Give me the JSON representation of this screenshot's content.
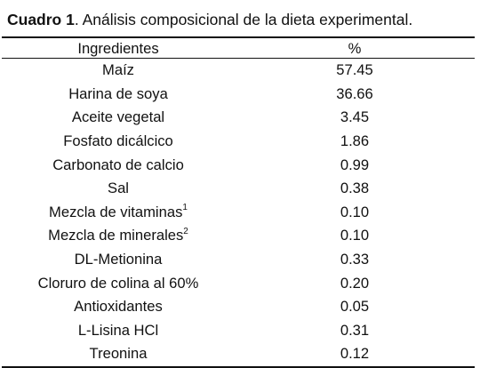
{
  "caption": {
    "lead": "Cuadro 1",
    "text": ". Análisis composicional de la dieta experimental."
  },
  "table": {
    "headers": {
      "ingredient": "Ingredientes",
      "percent": "%"
    },
    "rows": [
      {
        "name": "Maíz",
        "sup": "",
        "value": "57.45"
      },
      {
        "name": "Harina de soya",
        "sup": "",
        "value": "36.66"
      },
      {
        "name": "Aceite vegetal",
        "sup": "",
        "value": "3.45"
      },
      {
        "name": "Fosfato dicálcico",
        "sup": "",
        "value": "1.86"
      },
      {
        "name": "Carbonato de calcio",
        "sup": "",
        "value": "0.99"
      },
      {
        "name": "Sal",
        "sup": "",
        "value": "0.38"
      },
      {
        "name": "Mezcla de vitaminas",
        "sup": "1",
        "value": "0.10"
      },
      {
        "name": "Mezcla de minerales",
        "sup": "2",
        "value": "0.10"
      },
      {
        "name": "DL-Metionina",
        "sup": "",
        "value": "0.33"
      },
      {
        "name": "Cloruro de colina al 60%",
        "sup": "",
        "value": "0.20"
      },
      {
        "name": "Antioxidantes",
        "sup": "",
        "value": "0.05"
      },
      {
        "name": "L-Lisina HCl",
        "sup": "",
        "value": "0.31"
      },
      {
        "name": "Treonina",
        "sup": "",
        "value": "0.12"
      }
    ]
  }
}
